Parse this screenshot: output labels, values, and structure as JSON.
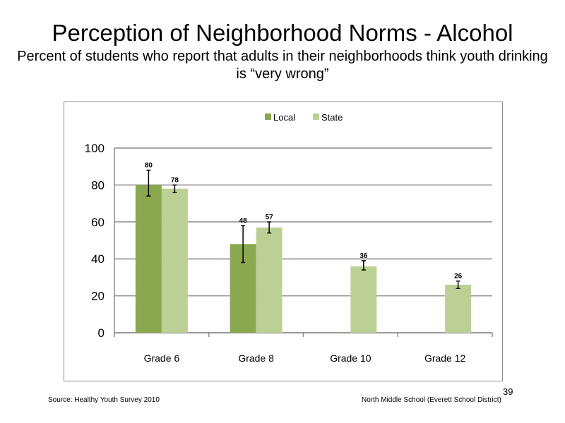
{
  "slide": {
    "title": "Perception of Neighborhood  Norms - Alcohol",
    "subtitle": "Percent of students who report that adults in their neighborhoods think youth drinking is “very wrong”",
    "source": "Source: Healthy Youth Survey 2010",
    "school": "North Middle School (Everett School District)",
    "page_number": "39"
  },
  "chart_data": {
    "type": "bar",
    "categories": [
      "Grade 6",
      "Grade 8",
      "Grade 10",
      "Grade 12"
    ],
    "series": [
      {
        "name": "Local",
        "color": "#8aa84f",
        "values": [
          80,
          48,
          null,
          null
        ],
        "error_low": [
          74,
          38,
          null,
          null
        ],
        "error_high": [
          88,
          58,
          null,
          null
        ]
      },
      {
        "name": "State",
        "color": "#bcd095",
        "values": [
          78,
          57,
          36,
          26
        ],
        "error_low": [
          76,
          54,
          34,
          24
        ],
        "error_high": [
          80,
          60,
          39,
          28
        ]
      }
    ],
    "ylim": [
      0,
      100
    ],
    "yticks": [
      0,
      20,
      40,
      60,
      80,
      100
    ],
    "grid": true,
    "legend_position": "top",
    "data_labels": true
  }
}
